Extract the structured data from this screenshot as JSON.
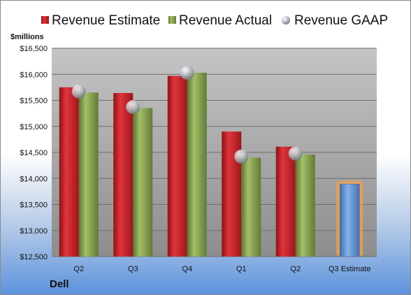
{
  "company": "Dell",
  "unit_label": "$millions",
  "colors": {
    "estimate": "#c0272d",
    "actual": "#7f9a48",
    "gaap": "#9aa3ad",
    "future_estimate": "#5b8fd4",
    "future_glow": "#f2a24e"
  },
  "chart_data": {
    "type": "bar",
    "categories": [
      "Q2",
      "Q3",
      "Q4",
      "Q1",
      "Q2",
      "Q3 Estimate"
    ],
    "ylim": [
      12500,
      16500
    ],
    "yticks": [
      12500,
      13000,
      13500,
      14000,
      14500,
      15000,
      15500,
      16000,
      16500
    ],
    "ytick_labels": [
      "$12,500",
      "$13,000",
      "$13,500",
      "$14,000",
      "$14,500",
      "$15,000",
      "$15,500",
      "$16,000",
      "$16,500"
    ],
    "grid": true,
    "legend_position": "top",
    "series": [
      {
        "name": "Revenue Estimate",
        "kind": "bar",
        "values": [
          15750,
          15640,
          15970,
          14900,
          14610,
          13890
        ]
      },
      {
        "name": "Revenue Actual",
        "kind": "bar",
        "values": [
          15650,
          15350,
          16030,
          14400,
          14460,
          null
        ]
      },
      {
        "name": "Revenue GAAP",
        "kind": "marker",
        "values": [
          15670,
          15370,
          16030,
          14420,
          14480,
          null
        ]
      }
    ]
  }
}
